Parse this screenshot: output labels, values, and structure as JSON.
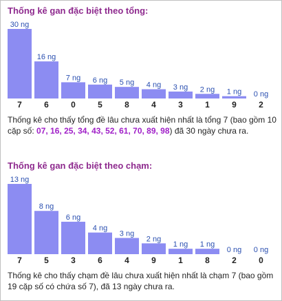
{
  "section1": {
    "title": "Thống kê gan đặc biệt theo tổng:",
    "desc_before": "Thống kê cho thấy tổng đề lâu chưa xuất hiện nhất là tổng 7 (bao gồm 10 cặp số: ",
    "desc_numbers": "07, 16, 25, 34, 43, 52, 61, 70, 89, 98",
    "desc_after": ") đã 30 ngày chưa ra."
  },
  "section2": {
    "title": "Thống kê gan đặc biệt theo chạm:",
    "desc": "Thống kê cho thấy chạm đề lâu chưa xuất hiện nhất là chạm 7 (bao gồm 19 cặp số có chứa số 7), đã 13 ngày chưa ra."
  },
  "colors": {
    "bar": "#8c8cf2",
    "title": "#8e2a8e",
    "value_label": "#2a4fb0",
    "highlight": "#a020c8"
  },
  "chart_data": [
    {
      "type": "bar",
      "title": "Thống kê gan đặc biệt theo tổng:",
      "categories": [
        "7",
        "6",
        "0",
        "5",
        "8",
        "4",
        "3",
        "1",
        "9",
        "2"
      ],
      "values": [
        30,
        16,
        7,
        6,
        5,
        4,
        3,
        2,
        1,
        0
      ],
      "value_labels": [
        "30 ng",
        "16 ng",
        "7 ng",
        "6 ng",
        "5 ng",
        "4 ng",
        "3 ng",
        "2 ng",
        "1 ng",
        "0 ng"
      ],
      "ylim": [
        0,
        30
      ]
    },
    {
      "type": "bar",
      "title": "Thống kê gan đặc biệt theo chạm:",
      "categories": [
        "7",
        "5",
        "3",
        "6",
        "4",
        "9",
        "1",
        "8",
        "2",
        "0"
      ],
      "values": [
        13,
        8,
        6,
        4,
        3,
        2,
        1,
        1,
        0,
        0
      ],
      "value_labels": [
        "13 ng",
        "8 ng",
        "6 ng",
        "4 ng",
        "3 ng",
        "2 ng",
        "1 ng",
        "1 ng",
        "0 ng",
        "0 ng"
      ],
      "ylim": [
        0,
        13
      ]
    }
  ]
}
